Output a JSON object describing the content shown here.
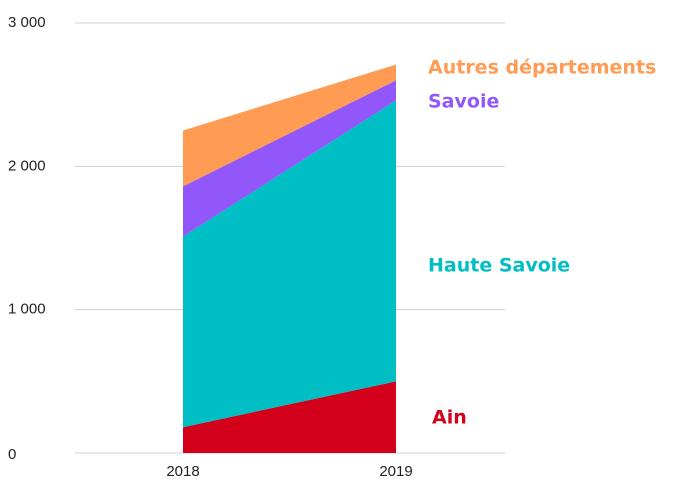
{
  "chart_data": {
    "type": "stacked-area",
    "categories": [
      "2018",
      "2019"
    ],
    "series": [
      {
        "name": "Ain",
        "color": "#d3001c",
        "values": [
          180,
          500
        ]
      },
      {
        "name": "Haute Savoie",
        "color": "#00bfc4",
        "values": [
          1330,
          1960
        ]
      },
      {
        "name": "Savoie",
        "color": "#9157fb",
        "values": [
          350,
          140
        ]
      },
      {
        "name": "Autres départements",
        "color": "#ff9b52",
        "values": [
          390,
          110
        ]
      }
    ],
    "ylim": [
      0,
      3000
    ],
    "yticks": [
      0,
      {
        "value": 1000,
        "label": "1 000"
      },
      {
        "value": 2000,
        "label": "2 000"
      },
      {
        "value": 3000,
        "label": "3 000"
      }
    ],
    "grid": true
  }
}
